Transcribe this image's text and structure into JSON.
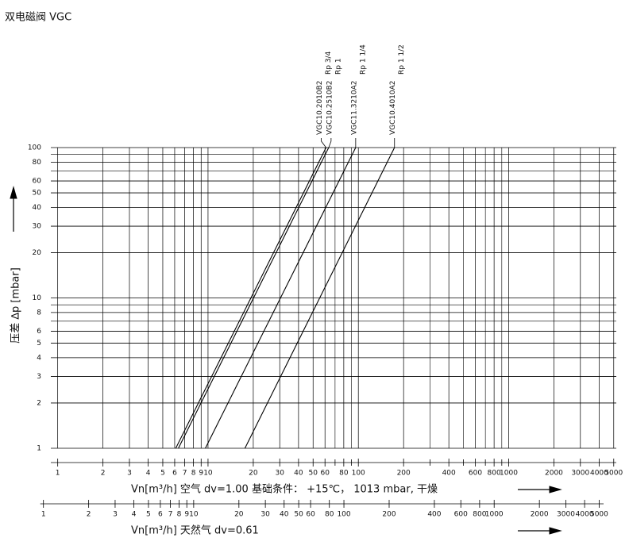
{
  "chart_data": {
    "type": "line",
    "title": "双电磁阀 VGC",
    "y_label": "压差 ∆p [mbar]",
    "x_label": "Vn[m³/h]  空气  dv=1.00    基础条件：  +15℃，  1013 mbar, 干燥",
    "x2_label": "Vn[m³/h]  天然气  dv=0.61",
    "log_x": true,
    "log_y": true,
    "grid": true,
    "xlim": [
      0.9,
      5200
    ],
    "ylim": [
      1,
      100
    ],
    "x2lim": [
      1.12,
      6500
    ],
    "xticks": [
      1,
      2,
      3,
      4,
      5,
      6,
      7,
      8,
      9,
      10,
      20,
      30,
      40,
      50,
      60,
      80,
      100,
      200,
      400,
      600,
      800,
      1000,
      2000,
      3000,
      4000,
      5000
    ],
    "xminor": [
      70,
      90,
      300,
      500,
      700,
      900
    ],
    "yticks": [
      1,
      2,
      3,
      4,
      5,
      6,
      8,
      10,
      20,
      30,
      40,
      50,
      60,
      80,
      100
    ],
    "yminor": [
      7,
      9,
      70,
      90
    ],
    "x2ticks": [
      1,
      2,
      3,
      4,
      5,
      6,
      7,
      8,
      9,
      10,
      20,
      30,
      40,
      50,
      60,
      80,
      100,
      200,
      400,
      600,
      800,
      1000,
      2000,
      3000,
      4000,
      5000
    ],
    "series": [
      {
        "name": "VGC10.2010B2",
        "size": "Rp 3/4",
        "color": "#000000",
        "x": [
          6.1,
          61
        ],
        "values": [
          1,
          100
        ]
      },
      {
        "name": "VGC10.2510B2",
        "size": "Rp 1",
        "color": "#000000",
        "x": [
          6.35,
          63.5
        ],
        "values": [
          1,
          100
        ]
      },
      {
        "name": "VGC11.3210A2",
        "size": "Rp 1 1/4",
        "color": "#000000",
        "x": [
          9.6,
          96
        ],
        "values": [
          1,
          100
        ]
      },
      {
        "name": "VGC10.4010A2",
        "size": "Rp 1 1/2",
        "color": "#000000",
        "x": [
          17.6,
          174
        ],
        "values": [
          1,
          100
        ]
      }
    ]
  }
}
